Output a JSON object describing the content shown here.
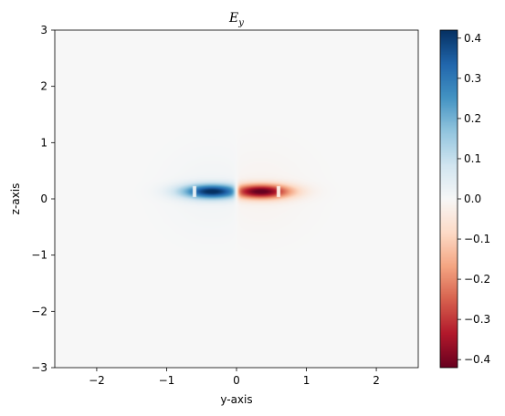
{
  "chart_data": {
    "type": "heatmap",
    "title_main": "E",
    "title_sub": "y",
    "xlabel": "y-axis",
    "ylabel": "z-axis",
    "xlim": [
      -2.6,
      2.6
    ],
    "ylim": [
      -3,
      3
    ],
    "xticks": [
      -2,
      -1,
      0,
      1,
      2
    ],
    "xtick_labels": [
      "−2",
      "−1",
      "0",
      "1",
      "2"
    ],
    "yticks": [
      -3,
      -2,
      -1,
      0,
      1,
      2,
      3
    ],
    "ytick_labels": [
      "−3",
      "−2",
      "−1",
      "0",
      "1",
      "2",
      "3"
    ],
    "colorbar": {
      "colormap": "RdBu",
      "range": [
        -0.42,
        0.42
      ],
      "ticks": [
        0.4,
        0.3,
        0.2,
        0.1,
        0.0,
        -0.1,
        -0.2,
        -0.3,
        -0.4
      ],
      "tick_labels": [
        "0.4",
        "0.3",
        "0.2",
        "0.1",
        "0.0",
        "−0.1",
        "−0.2",
        "−0.3",
        "−0.4"
      ]
    },
    "field": {
      "positive_lobe": {
        "y": -0.35,
        "z": 0.13,
        "peak": 0.42
      },
      "negative_lobe": {
        "y": 0.35,
        "z": 0.13,
        "peak": -0.42
      },
      "lobe_width_y": 0.3,
      "lobe_width_z": 0.09,
      "core_half_width_y": 0.6,
      "core_half_height_z": 0.1,
      "node_y": 0.0
    },
    "grid": false
  }
}
